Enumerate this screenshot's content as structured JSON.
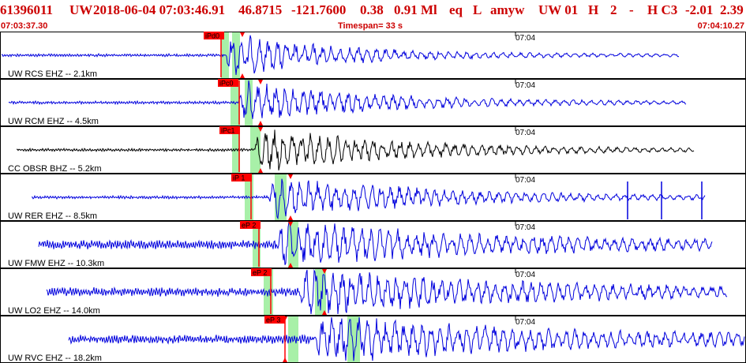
{
  "header": {
    "evid": "61396011",
    "net": "UW",
    "datetime": "2018-06-04 07:03:46.91",
    "lat": "46.8715",
    "lon": "-121.7600",
    "depth": "0.38",
    "mag": "0.91 Ml",
    "etype": "eq",
    "gtype": "L",
    "source": "amyw",
    "right": "UW 01",
    "h": "H",
    "hval": "2",
    "dash": "-",
    "hc3": "H C3",
    "rv1": "-2.01",
    "rv2": "2.39"
  },
  "subheader": {
    "start": "07:03:37.30",
    "timespan": "Timespan=  33 s",
    "end": "07:04:10.27"
  },
  "colors": {
    "header_red": "#cc0000",
    "trace_blue": "#0000dd",
    "trace_black": "#000000",
    "pick_red": "#ff0000",
    "window_green": "#a8f0a8",
    "border": "#000000"
  },
  "panels": [
    {
      "label": "UW RCS EHZ -- 2.1km",
      "time_tick": "07:04",
      "pick": "iPd0",
      "trace_color": "blue",
      "onset": 0.3,
      "end": 0.91,
      "start": 0.0
    },
    {
      "label": "UW RCM EHZ -- 4.5km",
      "time_tick": "07:04",
      "pick": "iPc0",
      "trace_color": "blue",
      "onset": 0.32,
      "end": 0.92,
      "start": 0.01
    },
    {
      "label": "CC OBSR BHZ -- 5.2km",
      "time_tick": "07:04",
      "pick": "iPc1",
      "trace_color": "black",
      "onset": 0.34,
      "end": 0.93,
      "start": 0.02
    },
    {
      "label": "UW RER EHZ -- 8.5km",
      "time_tick": "07:04",
      "pick": "iP 1",
      "trace_color": "blue",
      "onset": 0.36,
      "end": 0.945,
      "start": 0.04
    },
    {
      "label": "UW FMW EHZ -- 10.3km",
      "time_tick": "07:04",
      "pick": "eP 2",
      "trace_color": "blue",
      "onset": 0.37,
      "end": 0.955,
      "start": 0.05
    },
    {
      "label": "UW LO2 EHZ -- 14.0km",
      "time_tick": "07:04",
      "pick": "eP 2",
      "trace_color": "blue",
      "onset": 0.4,
      "end": 0.975,
      "start": 0.06
    },
    {
      "label": "UW RVC EHZ -- 18.2km",
      "time_tick": "07:04",
      "pick": "eP 3",
      "trace_color": "blue",
      "onset": 0.42,
      "end": 1.0,
      "start": 0.09
    }
  ]
}
